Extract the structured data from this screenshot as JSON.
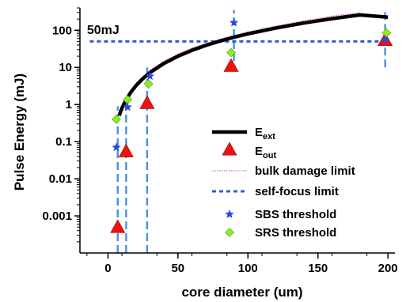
{
  "chart_data": {
    "type": "scatter",
    "xlabel": "core diameter (um)",
    "ylabel": "Pulse Energy (mJ)",
    "xlim": [
      -20,
      205
    ],
    "ylim": [
      0.0001,
      400
    ],
    "yscale": "log",
    "x_ticks": [
      {
        "value": 0,
        "label": "0"
      },
      {
        "value": 50,
        "label": "50"
      },
      {
        "value": 100,
        "label": "100"
      },
      {
        "value": 150,
        "label": "150"
      },
      {
        "value": 200,
        "label": "200"
      }
    ],
    "y_ticks": [
      {
        "value": 0.001,
        "label": "0.001"
      },
      {
        "value": 0.01,
        "label": "0.01"
      },
      {
        "value": 0.1,
        "label": "0.1"
      },
      {
        "value": 1,
        "label": "1"
      },
      {
        "value": 10,
        "label": "10"
      },
      {
        "value": 100,
        "label": "100"
      }
    ],
    "legend": {
      "placement": "lower-right",
      "entries": [
        {
          "key": "e_ext",
          "label": "E",
          "sub": "ext",
          "marker": "line-thick"
        },
        {
          "key": "e_out",
          "label": "E",
          "sub": "out",
          "marker": "triangle"
        },
        {
          "key": "bulk",
          "label": "bulk damage limit",
          "marker": "line-dotted-thin"
        },
        {
          "key": "selffocus",
          "label": "self-focus limit",
          "marker": "line-dashed"
        },
        {
          "key": "sbs",
          "label": "SBS threshold",
          "marker": "star"
        },
        {
          "key": "srs",
          "label": "SRS threshold",
          "marker": "diamond"
        }
      ]
    },
    "annotations": [
      {
        "text": "50mJ",
        "x": -15,
        "y": 80
      }
    ],
    "series": [
      {
        "key": "e_ext",
        "type": "line",
        "color": "#000000",
        "x": [
          8,
          10,
          13,
          16,
          20,
          25,
          30,
          40,
          50,
          60,
          70,
          80,
          90,
          100,
          120,
          140,
          160,
          180,
          200
        ],
        "y": [
          0.5,
          0.8,
          1.35,
          2.05,
          3.2,
          5.0,
          7.2,
          12.8,
          20,
          28.8,
          39.2,
          51.2,
          64.8,
          80,
          115,
          157,
          205,
          259,
          225
        ]
      },
      {
        "key": "bulk",
        "type": "line",
        "color": "#d040c0",
        "x": [
          10,
          20,
          30,
          40,
          50,
          60,
          80,
          100,
          120,
          140,
          160,
          180
        ],
        "y": [
          1.0,
          3.8,
          8.5,
          15,
          23,
          33,
          58,
          90,
          130,
          180,
          240,
          300
        ]
      },
      {
        "key": "selffocus",
        "type": "hline",
        "color": "#2a5fd8",
        "x": [
          -13,
          200
        ],
        "y": [
          50,
          50
        ]
      },
      {
        "key": "e_out",
        "type": "scatter",
        "color": "#ee1111",
        "x": [
          7,
          13,
          28,
          88,
          198
        ],
        "y": [
          0.0005,
          0.055,
          1.1,
          11,
          55
        ]
      },
      {
        "key": "sbs",
        "type": "scatter",
        "color": "#2848e0",
        "x": [
          6,
          14,
          30,
          90,
          198
        ],
        "y": [
          0.07,
          0.85,
          5.8,
          160,
          55
        ]
      },
      {
        "key": "srs",
        "type": "scatter",
        "color": "#88ee22",
        "x": [
          6,
          14,
          29,
          88,
          199
        ],
        "y": [
          0.4,
          1.35,
          3.6,
          25,
          85
        ]
      }
    ],
    "vertical_dashed_lines": {
      "color": "#4a90e2",
      "lines": [
        {
          "x": 7,
          "y": [
            0.0001,
            0.9
          ]
        },
        {
          "x": 13,
          "y": [
            0.0001,
            1.5
          ]
        },
        {
          "x": 28,
          "y": [
            0.0001,
            10
          ]
        },
        {
          "x": 90,
          "y": [
            15,
            350
          ]
        },
        {
          "x": 198,
          "y": [
            10,
            350
          ]
        }
      ]
    }
  }
}
